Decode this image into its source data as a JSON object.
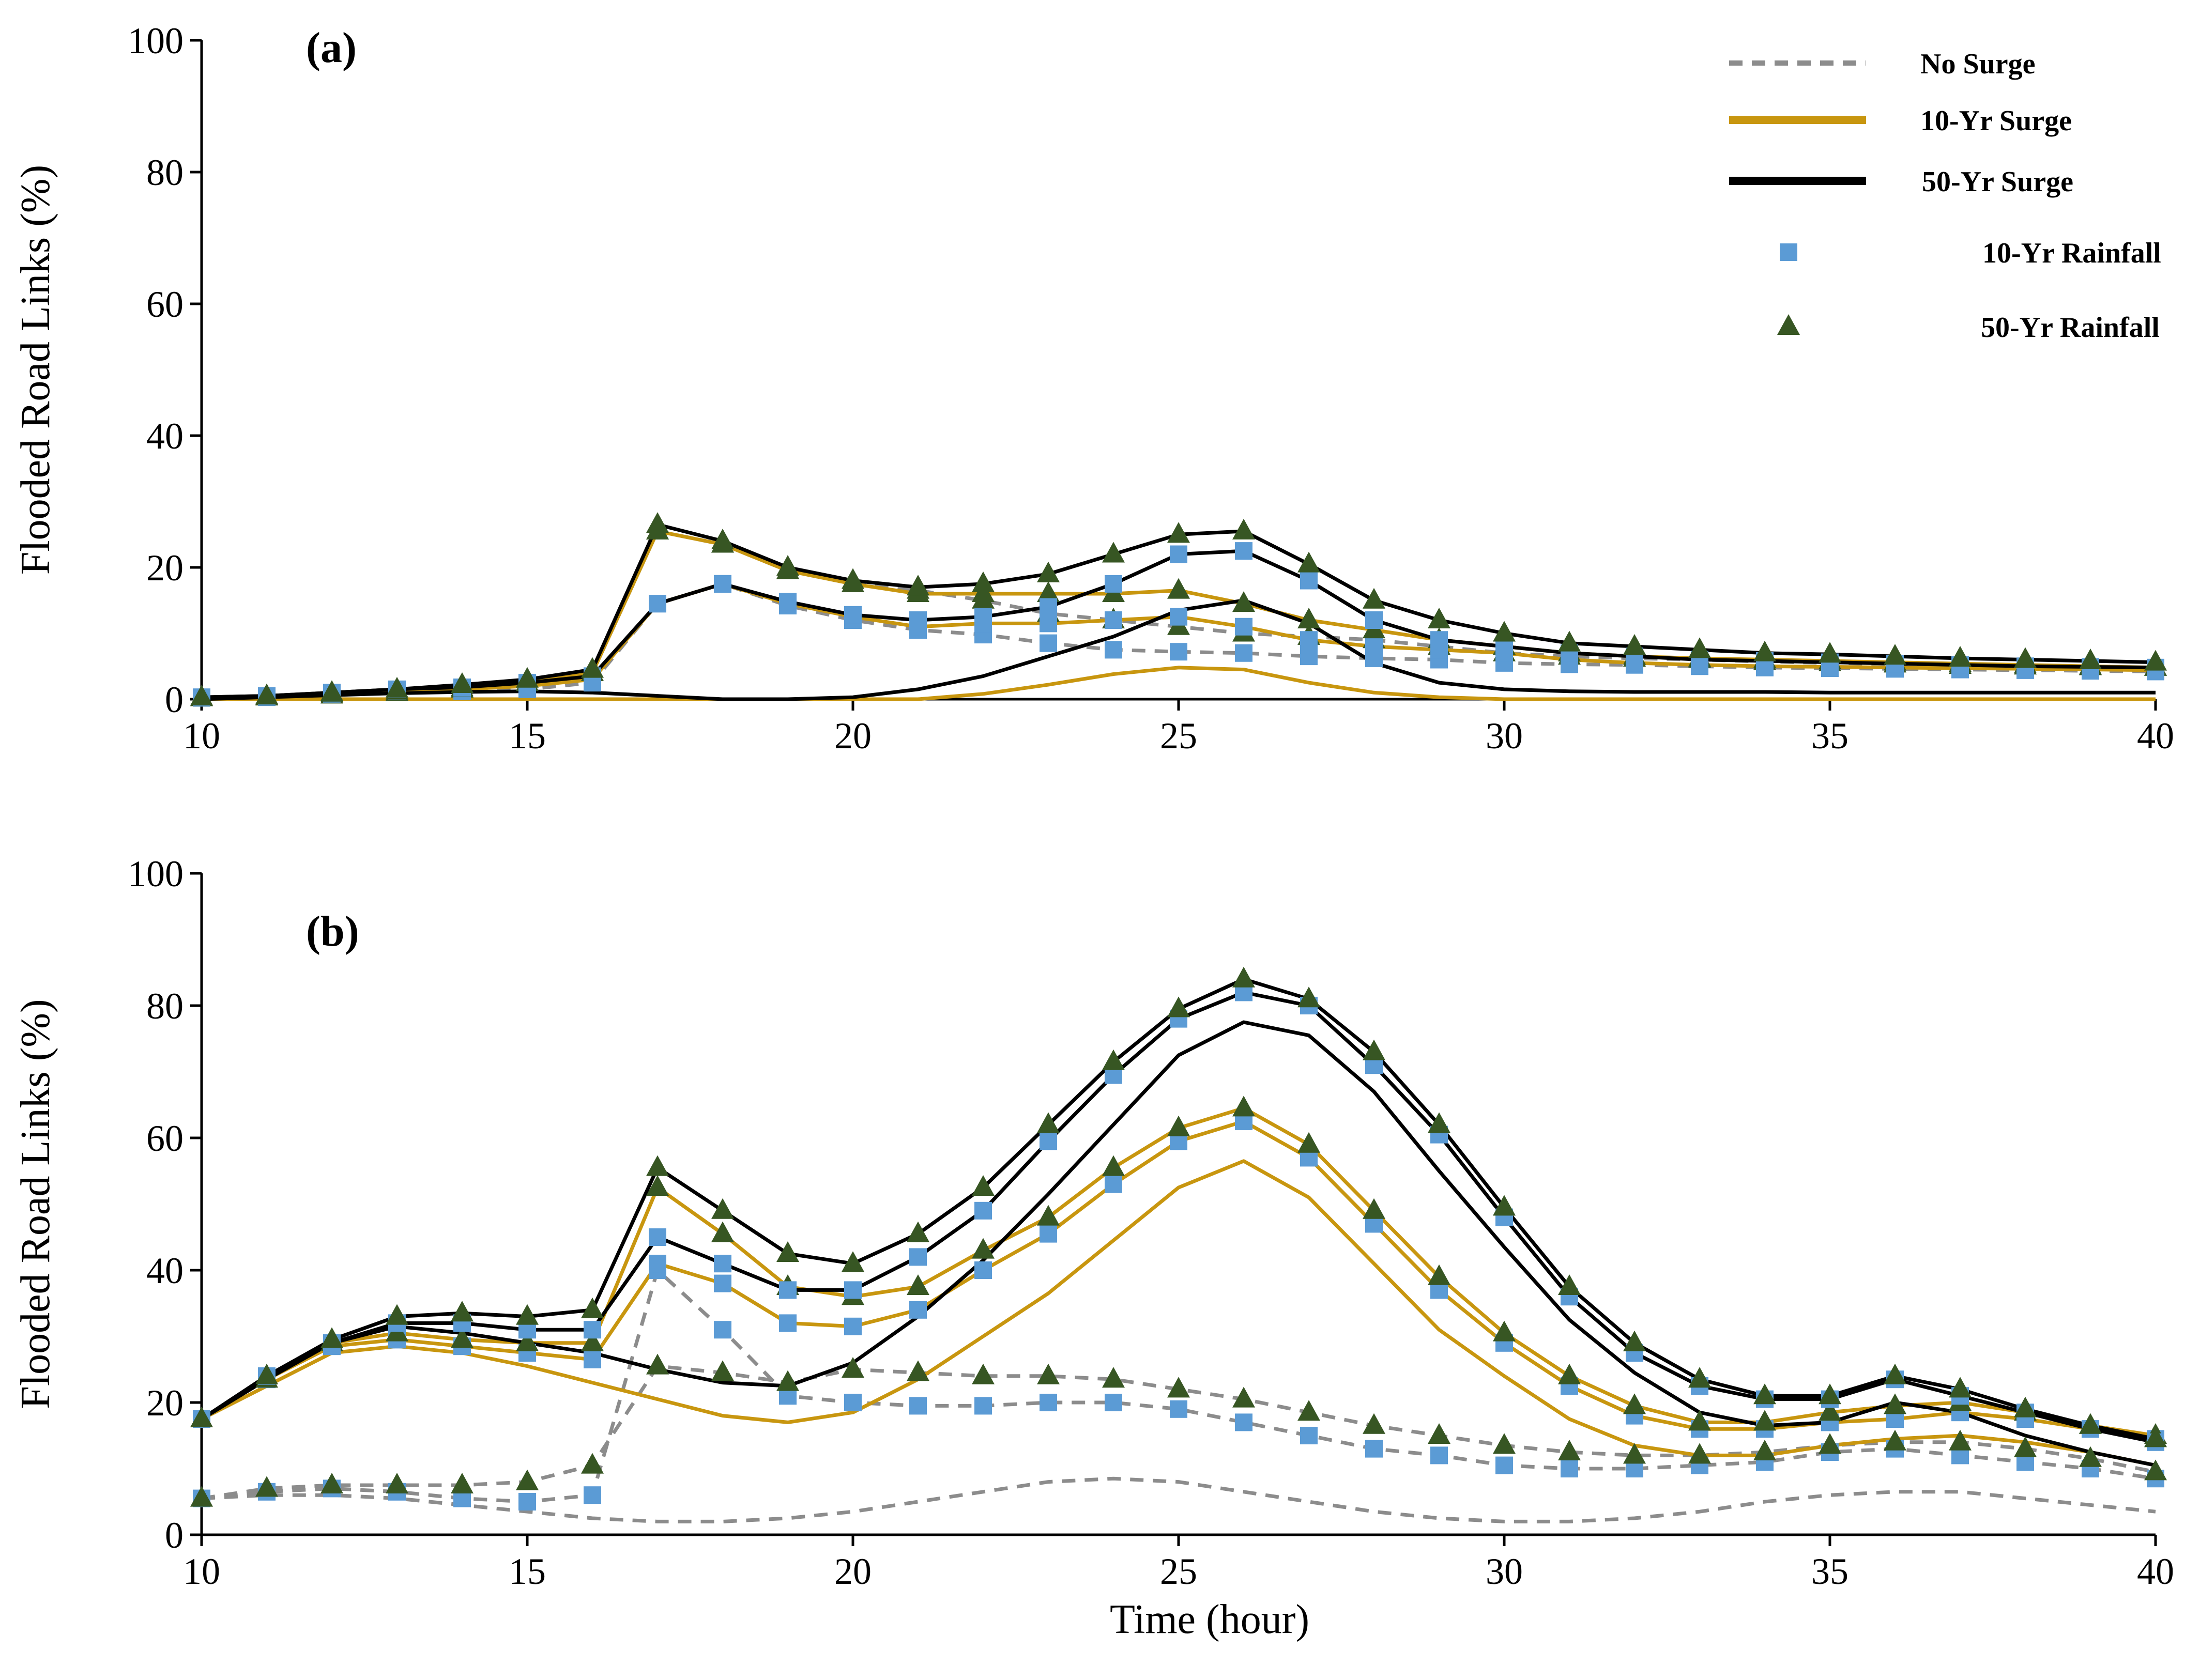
{
  "colors": {
    "no_surge": "#8c8c8c",
    "surge_10yr": "#c8960f",
    "surge_50yr": "#000000",
    "rain_10yr": "#5b9bd5",
    "rain_50yr": "#375623"
  },
  "legend": {
    "no_surge": "No Surge",
    "surge_10yr": "10-Yr Surge",
    "surge_50yr": "50-Yr Surge",
    "rain_10yr": "10-Yr Rainfall",
    "rain_50yr": "50-Yr Rainfall"
  },
  "chart_data": [
    {
      "panel_label": "(a)",
      "type": "line",
      "ylabel": "Flooded Road Links (%)",
      "xlabel": "",
      "xlim": [
        10,
        40
      ],
      "ylim": [
        0,
        100
      ],
      "xticks": [
        "10",
        "15",
        "20",
        "25",
        "30",
        "35",
        "40"
      ],
      "yticks": [
        "0",
        "20",
        "40",
        "60",
        "80",
        "100"
      ],
      "x": [
        10,
        11,
        12,
        13,
        14,
        15,
        16,
        17,
        18,
        19,
        20,
        21,
        22,
        23,
        24,
        25,
        26,
        27,
        28,
        29,
        30,
        31,
        32,
        33,
        34,
        35,
        36,
        37,
        38,
        39,
        40
      ],
      "series": [
        {
          "name": "No Surge, 10-Yr Rainfall",
          "surge": "no",
          "marker": "square",
          "values": [
            0.2,
            0.3,
            0.8,
            1.2,
            1.2,
            1.5,
            2.5,
            14.5,
            17.5,
            14.2,
            12,
            10.5,
            9.8,
            8.5,
            7.5,
            7.2,
            7,
            6.5,
            6.2,
            6,
            5.5,
            5.3,
            5.2,
            5,
            4.8,
            4.7,
            4.6,
            4.5,
            4.4,
            4.3,
            4.2
          ]
        },
        {
          "name": "No Surge, 50-Yr Rainfall",
          "surge": "no",
          "marker": "triangle",
          "values": [
            0.2,
            0.3,
            0.6,
            1.0,
            1.5,
            2.5,
            4.0,
            25.5,
            23.5,
            19.5,
            17.5,
            16.5,
            15,
            13,
            12,
            11,
            10,
            9.5,
            9,
            8,
            7,
            6.5,
            6.2,
            6,
            5.7,
            5.5,
            5.3,
            5.1,
            5,
            4.9,
            4.8
          ]
        },
        {
          "name": "10-Yr Surge, 0",
          "surge": "10",
          "marker": "none",
          "values": [
            0,
            0,
            0,
            0,
            0,
            0,
            0,
            0,
            0,
            0,
            0,
            0,
            0.8,
            2.2,
            3.8,
            4.8,
            4.5,
            2.5,
            1,
            0.3,
            0,
            0,
            0,
            0,
            0,
            0,
            0,
            0,
            0,
            0,
            0
          ]
        },
        {
          "name": "10-Yr Surge, 10-Yr Rainfall",
          "surge": "10",
          "marker": "square",
          "values": [
            0.2,
            0.4,
            0.8,
            1.2,
            1.5,
            2,
            3,
            14.5,
            17.5,
            14.5,
            12.5,
            11,
            11.5,
            11.5,
            12,
            12.5,
            11,
            9,
            8,
            7.5,
            7,
            6,
            5.5,
            5.2,
            5,
            4.9,
            4.8,
            4.7,
            4.6,
            4.5,
            4.4
          ]
        },
        {
          "name": "10-Yr Surge, 50-Yr Rainfall",
          "surge": "10",
          "marker": "triangle",
          "values": [
            0.2,
            0.4,
            0.8,
            1.2,
            1.7,
            2.5,
            4,
            25.5,
            23.5,
            19.5,
            17.5,
            16,
            16,
            16,
            16,
            16.5,
            14.5,
            12,
            10.5,
            9,
            8,
            7,
            6.5,
            6.2,
            6,
            5.8,
            5.6,
            5.4,
            5.2,
            5,
            4.8
          ]
        },
        {
          "name": "50-Yr Surge, 0",
          "surge": "50",
          "marker": "none",
          "values": [
            0,
            0.3,
            0.6,
            0.9,
            1.1,
            1.2,
            1.0,
            0.5,
            0,
            0,
            0.3,
            1.5,
            3.5,
            6.5,
            9.5,
            13.5,
            15,
            11.5,
            5.5,
            2.5,
            1.5,
            1.2,
            1.1,
            1.1,
            1.1,
            1,
            1,
            1,
            1,
            1,
            1
          ]
        },
        {
          "name": "50-Yr Surge, 10-Yr Rainfall",
          "surge": "50",
          "marker": "square",
          "values": [
            0.3,
            0.5,
            1,
            1.5,
            1.8,
            2.5,
            3.5,
            14.5,
            17.5,
            14.8,
            12.8,
            12,
            12.5,
            14,
            17.5,
            22,
            22.5,
            18,
            12,
            9,
            8,
            7,
            6.5,
            6,
            5.8,
            5.6,
            5.4,
            5.2,
            5,
            4.9,
            4.8
          ]
        },
        {
          "name": "50-Yr Surge, 50-Yr Rainfall",
          "surge": "50",
          "marker": "triangle",
          "values": [
            0.3,
            0.5,
            1,
            1.5,
            2.2,
            3,
            4.5,
            26.5,
            24,
            20,
            18,
            17,
            17.5,
            19,
            22,
            25,
            25.5,
            20.5,
            15,
            12,
            10,
            8.5,
            8,
            7.5,
            7,
            6.8,
            6.5,
            6.2,
            6,
            5.8,
            5.6
          ]
        }
      ]
    },
    {
      "panel_label": "(b)",
      "type": "line",
      "ylabel": "Flooded Road Links (%)",
      "xlabel": "Time (hour)",
      "xlim": [
        10,
        40
      ],
      "ylim": [
        0,
        100
      ],
      "xticks": [
        "10",
        "15",
        "20",
        "25",
        "30",
        "35",
        "40"
      ],
      "yticks": [
        "0",
        "20",
        "40",
        "60",
        "80",
        "100"
      ],
      "x": [
        10,
        11,
        12,
        13,
        14,
        15,
        16,
        17,
        18,
        19,
        20,
        21,
        22,
        23,
        24,
        25,
        26,
        27,
        28,
        29,
        30,
        31,
        32,
        33,
        34,
        35,
        36,
        37,
        38,
        39,
        40
      ],
      "series": [
        {
          "name": "No Surge, 0",
          "surge": "no",
          "marker": "none",
          "values": [
            5.5,
            6,
            6,
            5.5,
            4.5,
            3.5,
            2.5,
            2,
            2,
            2.5,
            3.5,
            5,
            6.5,
            8,
            8.5,
            8,
            6.5,
            5,
            3.5,
            2.5,
            2,
            2,
            2.5,
            3.5,
            5,
            6,
            6.5,
            6.5,
            5.5,
            4.5,
            3.5
          ]
        },
        {
          "name": "No Surge, 10-Yr Rainfall",
          "surge": "no",
          "marker": "square",
          "values": [
            5.5,
            6.5,
            7,
            6.5,
            5.5,
            5,
            6,
            40,
            31,
            21,
            20,
            19.5,
            19.5,
            20,
            20,
            19,
            17,
            15,
            13,
            12,
            10.5,
            10,
            10,
            10.5,
            11,
            12.5,
            13,
            12,
            11,
            10,
            8.5
          ]
        },
        {
          "name": "No Surge, 50-Yr Rainfall",
          "surge": "no",
          "marker": "triangle",
          "values": [
            5.5,
            7,
            7.5,
            7.5,
            7.5,
            8,
            10.5,
            25.5,
            24.5,
            23,
            25,
            24.5,
            24,
            24,
            23.5,
            22,
            20.5,
            18.5,
            16.5,
            15,
            13.5,
            12.5,
            12,
            12,
            12.5,
            13.5,
            14,
            14,
            13,
            11.5,
            9.5
          ]
        },
        {
          "name": "10-Yr Surge, 0",
          "surge": "10",
          "marker": "none",
          "values": [
            17.5,
            22.5,
            27.5,
            28.5,
            27.5,
            25.5,
            23,
            20.5,
            18,
            17,
            18.5,
            23.5,
            30,
            36.5,
            44.5,
            52.5,
            56.5,
            51,
            41,
            31,
            24,
            17.5,
            13.5,
            12,
            12,
            13.5,
            14.5,
            15,
            14,
            12.5,
            10.5
          ]
        },
        {
          "name": "10-Yr Surge, 10-Yr Rainfall",
          "surge": "10",
          "marker": "square",
          "values": [
            17.5,
            23.5,
            28.5,
            29.5,
            28.5,
            27.5,
            26.5,
            41,
            38,
            32,
            31.5,
            34,
            40,
            45.5,
            53,
            59.5,
            62.5,
            57,
            47,
            37,
            29,
            22.5,
            18,
            16,
            16,
            17,
            17.5,
            18.5,
            17.5,
            16,
            14.5
          ]
        },
        {
          "name": "10-Yr Surge, 50-Yr Rainfall",
          "surge": "10",
          "marker": "triangle",
          "values": [
            17.5,
            23.5,
            29,
            30.5,
            29.5,
            29,
            29,
            52.5,
            45.5,
            37.5,
            36,
            37.5,
            43,
            48,
            55.5,
            61.5,
            64.5,
            59,
            49,
            39,
            30.5,
            24,
            19.5,
            17,
            17,
            18.5,
            19.5,
            20,
            18.5,
            16.5,
            15
          ]
        },
        {
          "name": "50-Yr Surge, 0",
          "surge": "50",
          "marker": "none",
          "values": [
            17.5,
            23.5,
            29,
            31.5,
            30.5,
            29,
            27.5,
            25,
            23,
            22.5,
            26,
            33,
            41.5,
            51.5,
            62,
            72.5,
            77.5,
            75.5,
            67,
            55,
            43.5,
            32.5,
            24.5,
            18.5,
            16.5,
            17,
            20,
            18.5,
            15,
            12.5,
            10.5
          ]
        },
        {
          "name": "50-Yr Surge, 10-Yr Rainfall",
          "surge": "50",
          "marker": "square",
          "values": [
            17.5,
            24,
            29,
            32,
            32,
            31,
            31,
            45,
            41,
            37,
            37,
            42,
            49,
            59.5,
            69.5,
            78,
            82,
            80,
            71,
            60.5,
            48,
            36,
            27.5,
            22.5,
            20.5,
            20.5,
            23.5,
            21,
            18.5,
            16,
            14
          ]
        },
        {
          "name": "50-Yr Surge, 50-Yr Rainfall",
          "surge": "50",
          "marker": "triangle",
          "values": [
            17.5,
            24,
            29.5,
            33,
            33.5,
            33,
            34,
            55.5,
            49,
            42.5,
            41,
            45.5,
            52.5,
            62,
            71.5,
            79.5,
            84,
            81,
            73,
            62,
            49.5,
            37.5,
            29,
            23.5,
            21,
            21,
            24,
            22,
            19,
            16.5,
            14.5
          ]
        }
      ]
    }
  ]
}
